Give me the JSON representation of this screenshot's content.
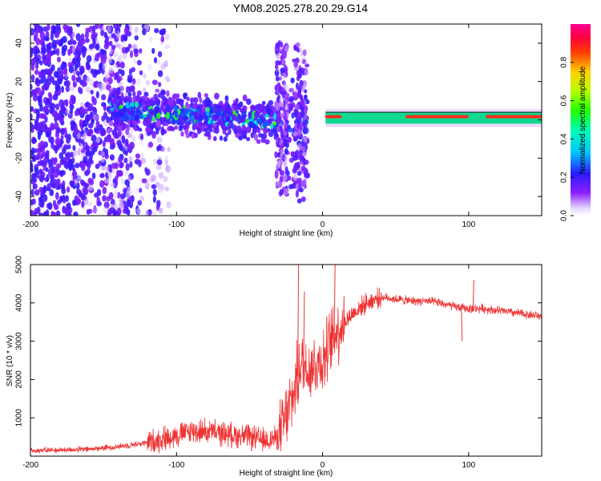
{
  "title": "YM08.2025.278.20.29.G14",
  "chart_data": [
    {
      "type": "heatmap",
      "name": "spectrogram",
      "xlabel": "Height of straight line (km)",
      "ylabel": "Frequency (Hz)",
      "xlim": [
        -200,
        150
      ],
      "ylim": [
        -50,
        50
      ],
      "xticks": [
        -200,
        -100,
        0,
        100
      ],
      "yticks": [
        -40,
        -20,
        0,
        20,
        40
      ],
      "colorbar": {
        "label": "Normalized spectral amplitude",
        "range": [
          0,
          1
        ],
        "ticks": [
          0.0,
          0.2,
          0.4,
          0.6,
          0.8
        ]
      },
      "features": [
        {
          "description": "scattered noise",
          "x_range": [
            -200,
            -120
          ],
          "freq_range": [
            -50,
            50
          ]
        },
        {
          "description": "main signal band",
          "x_range": [
            -140,
            -25
          ],
          "freq_center_start": 5,
          "freq_center_end": -2
        },
        {
          "description": "spreading near zero",
          "x_range": [
            -30,
            -10
          ],
          "freq_range": [
            -40,
            40
          ]
        },
        {
          "description": "strong stable tone",
          "x_range": [
            0,
            150
          ],
          "freq": 1
        }
      ]
    },
    {
      "type": "line",
      "name": "snr",
      "xlabel": "Height of straight line (km)",
      "ylabel": "SNR (10 * v/v)",
      "xlim": [
        -200,
        150
      ],
      "ylim": [
        0,
        5000
      ],
      "xticks": [
        -200,
        -100,
        0,
        100
      ],
      "yticks": [
        1000,
        2000,
        3000,
        4000,
        5000
      ],
      "color": "#ee3333",
      "series": [
        {
          "name": "SNR",
          "x": [
            -200,
            -180,
            -160,
            -140,
            -120,
            -100,
            -90,
            -80,
            -70,
            -60,
            -50,
            -40,
            -30,
            -25,
            -20,
            -15,
            -10,
            -5,
            0,
            10,
            20,
            30,
            40,
            50,
            60,
            70,
            80,
            90,
            100,
            110,
            120,
            130,
            140,
            150
          ],
          "values": [
            150,
            160,
            180,
            250,
            350,
            550,
            650,
            650,
            600,
            550,
            500,
            400,
            500,
            1000,
            1600,
            2400,
            2300,
            2400,
            2500,
            3300,
            3700,
            4000,
            4150,
            4100,
            4050,
            4050,
            4000,
            3900,
            3850,
            3850,
            3800,
            3750,
            3700,
            3650
          ]
        }
      ],
      "spikes": [
        {
          "x": -17,
          "value": 5000
        },
        {
          "x": -13,
          "value": 4300
        },
        {
          "x": 8,
          "value": 5000
        },
        {
          "x": 103,
          "value": 4600
        },
        {
          "x": 95,
          "value": 3000
        }
      ]
    }
  ]
}
